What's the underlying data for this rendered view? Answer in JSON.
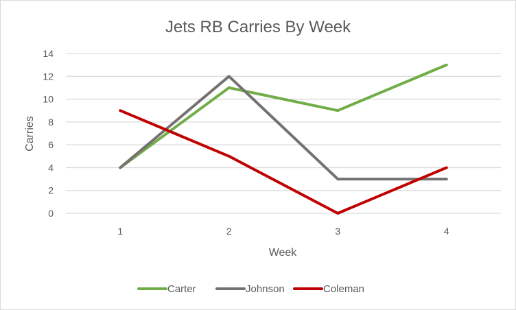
{
  "chart_data": {
    "type": "line",
    "title": "Jets RB Carries By Week",
    "xlabel": "Week",
    "ylabel": "Carries",
    "x": [
      "1",
      "2",
      "3",
      "4"
    ],
    "ylim": [
      0,
      14
    ],
    "yticks": [
      "0",
      "2",
      "4",
      "6",
      "8",
      "10",
      "12",
      "14"
    ],
    "grid": true,
    "legend_position": "bottom",
    "series": [
      {
        "name": "Carter",
        "values": [
          4,
          11,
          9,
          13
        ],
        "color": "#70ad47"
      },
      {
        "name": "Johnson",
        "values": [
          4,
          12,
          3,
          3
        ],
        "color": "#767171"
      },
      {
        "name": "Coleman",
        "values": [
          9,
          5,
          0,
          4
        ],
        "color": "#c00000"
      }
    ]
  }
}
